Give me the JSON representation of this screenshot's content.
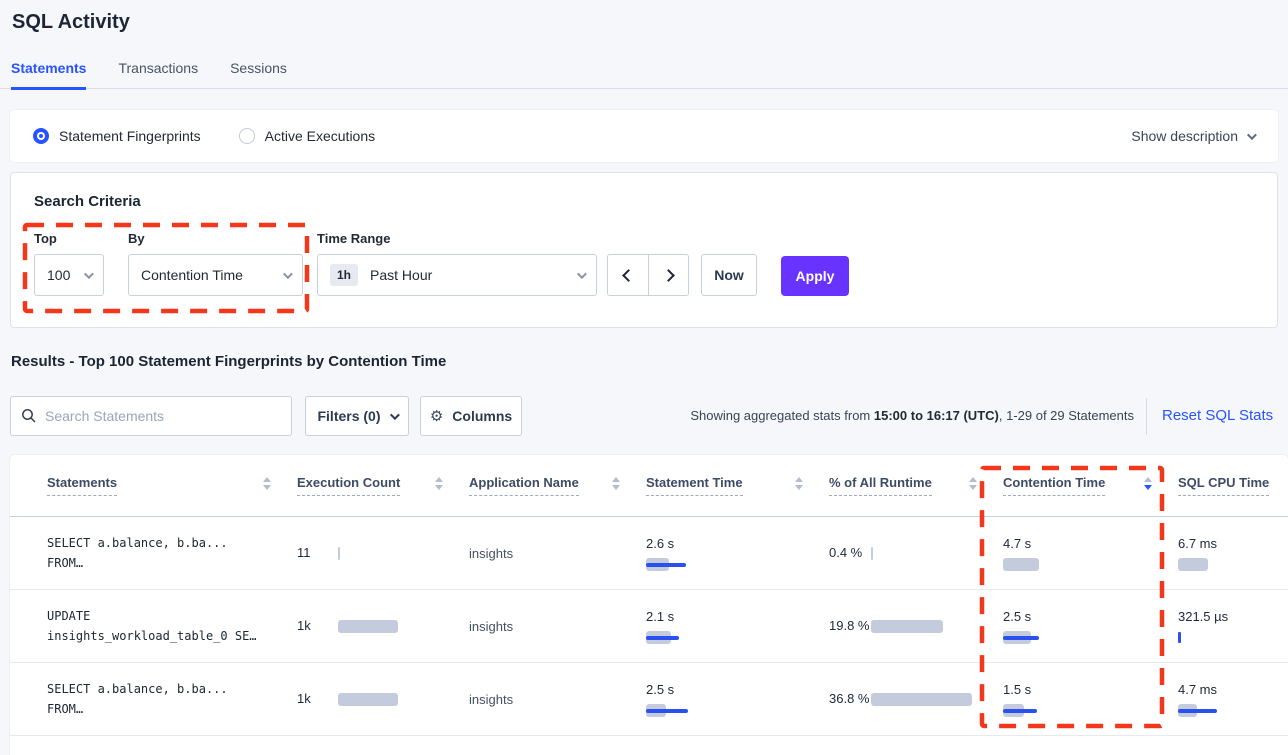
{
  "page": {
    "title": "SQL Activity"
  },
  "tabs": [
    {
      "label": "Statements",
      "active": true
    },
    {
      "label": "Transactions",
      "active": false
    },
    {
      "label": "Sessions",
      "active": false
    }
  ],
  "view_toggle": {
    "options": [
      {
        "label": "Statement Fingerprints",
        "selected": true
      },
      {
        "label": "Active Executions",
        "selected": false
      }
    ],
    "show_description": "Show description"
  },
  "search_criteria": {
    "heading": "Search Criteria",
    "top": {
      "label": "Top",
      "value": "100"
    },
    "by": {
      "label": "By",
      "value": "Contention Time"
    },
    "time_range": {
      "label": "Time Range",
      "badge": "1h",
      "value": "Past Hour"
    },
    "now_label": "Now",
    "apply_label": "Apply"
  },
  "results": {
    "heading": "Results - Top 100 Statement Fingerprints by Contention Time",
    "search_placeholder": "Search Statements",
    "filters_label": "Filters (0)",
    "columns_label": "Columns",
    "stats_prefix": "Showing aggregated stats from ",
    "stats_bold": "15:00 to 16:17 (UTC)",
    "stats_suffix": ", 1-29 of 29 Statements",
    "reset_label": "Reset SQL Stats"
  },
  "icons": {
    "gear_glyph": "⚙"
  },
  "table": {
    "headers": [
      {
        "label": "Statements",
        "arrows": true,
        "sort": null
      },
      {
        "label": "Execution Count",
        "arrows": true,
        "sort": null
      },
      {
        "label": "Application Name",
        "arrows": true,
        "sort": null
      },
      {
        "label": "Statement Time",
        "arrows": true,
        "sort": null
      },
      {
        "label": "% of All Runtime",
        "arrows": true,
        "sort": null
      },
      {
        "label": "Contention Time",
        "arrows": true,
        "sort": "desc"
      },
      {
        "label": "SQL CPU Time",
        "arrows": false,
        "sort": null
      }
    ],
    "rows": [
      {
        "stmt_line1": "SELECT a.balance, b.ba...",
        "stmt_line2": "FROM…",
        "exec": {
          "label": "11",
          "g": 2,
          "b": 0
        },
        "app": "insights",
        "stmt_time": {
          "label": "2.6 s",
          "g": 23,
          "b": 40
        },
        "pct": {
          "label": "0.4 %",
          "g": 2,
          "b": 0
        },
        "contention": {
          "label": "4.7 s",
          "g": 36,
          "b": 0
        },
        "cpu": {
          "label": "6.7 ms",
          "g": 30,
          "b": 0
        }
      },
      {
        "stmt_line1": "UPDATE",
        "stmt_line2": "insights_workload_table_0 SE…",
        "exec": {
          "label": "1k",
          "g": 60,
          "b": 0
        },
        "app": "insights",
        "stmt_time": {
          "label": "2.1 s",
          "g": 25,
          "b": 33
        },
        "pct": {
          "label": "19.8 %",
          "g": 72,
          "b": 0
        },
        "contention": {
          "label": "2.5 s",
          "g": 28,
          "b": 36
        },
        "cpu": {
          "label": "321.5 µs",
          "g": 0,
          "b": 3
        }
      },
      {
        "stmt_line1": "SELECT a.balance, b.ba...",
        "stmt_line2": "FROM…",
        "exec": {
          "label": "1k",
          "g": 60,
          "b": 0
        },
        "app": "insights",
        "stmt_time": {
          "label": "2.5 s",
          "g": 20,
          "b": 42
        },
        "pct": {
          "label": "36.8 %",
          "g": 101,
          "b": 0
        },
        "contention": {
          "label": "1.5 s",
          "g": 21,
          "b": 34
        },
        "cpu": {
          "label": "4.7 ms",
          "g": 19,
          "b": 39
        }
      }
    ]
  },
  "colors": {
    "accent_blue": "#2754ff",
    "bar_blue": "#2b50f0",
    "bar_gray": "#c3cbdc",
    "apply_purple": "#6933ff",
    "annotation_red": "#f3371b",
    "link_blue": "#2754ff"
  }
}
